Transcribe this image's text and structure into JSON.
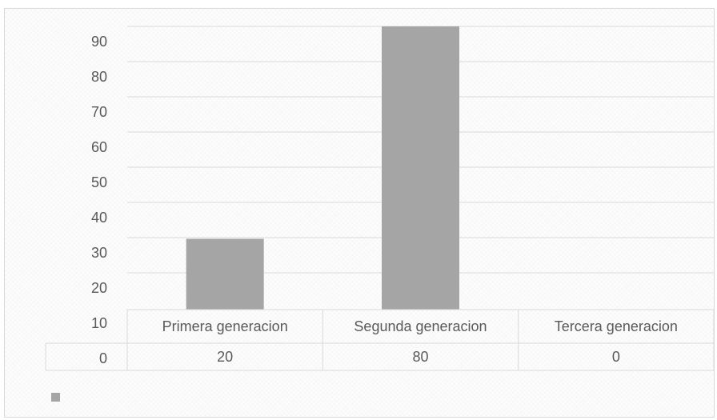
{
  "chart_data": {
    "type": "bar",
    "title": "",
    "xlabel": "",
    "ylabel": "",
    "categories": [
      "Primera generacion",
      "Segunda generacion",
      "Tercera generacion"
    ],
    "series": [
      {
        "values": [
          20,
          80,
          0
        ],
        "color": "#a5a5a5"
      }
    ],
    "y_ticks": [
      "0",
      "10",
      "20",
      "30",
      "40",
      "50",
      "60",
      "70",
      "80",
      "90"
    ],
    "ylim": [
      0,
      90
    ],
    "grid": true,
    "data_table": {
      "values": [
        "20",
        "80",
        "0"
      ]
    },
    "legend": {
      "position": "bottom-left",
      "swatch_color": "#a5a5a5"
    }
  }
}
